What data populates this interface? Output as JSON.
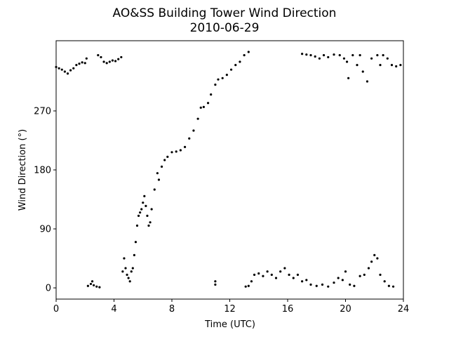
{
  "chart_data": {
    "type": "scatter",
    "title": "AO&SS Building Tower Wind Direction",
    "subtitle": "2010-06-29",
    "x_label": "Time (UTC)",
    "y_label": "Wind Direction (°)",
    "color": "#000000",
    "xlim": [
      0,
      24
    ],
    "ylim": [
      -17.1,
      377.1
    ],
    "xticks": [
      0,
      4,
      8,
      12,
      16,
      20,
      24
    ],
    "yticks": [
      0,
      90,
      180,
      270
    ],
    "grid": false,
    "x": [
      0,
      0.2,
      0.4,
      0.6,
      0.8,
      1.0,
      1.2,
      1.4,
      1.6,
      1.8,
      2.0,
      2.1,
      2.2,
      2.4,
      2.5,
      2.6,
      2.8,
      3.0,
      2.9,
      3.1,
      3.3,
      3.5,
      3.7,
      3.9,
      4.1,
      4.3,
      4.5,
      4.6,
      4.7,
      4.8,
      4.9,
      5.0,
      5.1,
      5.2,
      5.3,
      5.4,
      5.5,
      5.6,
      5.7,
      5.8,
      5.9,
      6.0,
      6.1,
      6.2,
      6.3,
      6.4,
      6.5,
      6.6,
      6.8,
      7.0,
      7.1,
      7.3,
      7.5,
      7.7,
      8.0,
      8.3,
      8.6,
      8.9,
      9.2,
      9.5,
      9.8,
      10.0,
      10.2,
      10.5,
      10.7,
      11.0,
      11.2,
      11.5,
      11.8,
      12.1,
      12.4,
      12.7,
      13.0,
      13.3,
      11.0,
      11.0,
      13.1,
      13.3,
      13.5,
      13.7,
      14.0,
      14.3,
      14.6,
      14.9,
      15.2,
      15.5,
      15.8,
      16.1,
      16.4,
      16.7,
      17.0,
      17.3,
      17.6,
      18.0,
      18.4,
      18.8,
      19.2,
      19.5,
      19.8,
      20.0,
      20.3,
      20.6,
      21.0,
      21.3,
      21.6,
      21.8,
      22.0,
      22.2,
      22.4,
      22.7,
      23.0,
      23.3,
      17.0,
      17.3,
      17.6,
      17.9,
      18.2,
      18.5,
      18.8,
      19.2,
      19.6,
      19.9,
      20.1,
      20.2,
      20.5,
      20.8,
      21.0,
      21.2,
      21.5,
      21.8,
      22.2,
      22.4,
      22.6,
      22.9,
      23.2,
      23.5,
      23.8
    ],
    "values": [
      337,
      335,
      333,
      330,
      327,
      332,
      335,
      340,
      342,
      344,
      343,
      350,
      3,
      6,
      10,
      4,
      2,
      1,
      355,
      352,
      345,
      343,
      345,
      347,
      346,
      349,
      352,
      25,
      45,
      30,
      20,
      15,
      10,
      25,
      30,
      50,
      70,
      95,
      110,
      115,
      120,
      130,
      140,
      125,
      110,
      95,
      100,
      120,
      150,
      175,
      165,
      185,
      195,
      200,
      207,
      208,
      210,
      215,
      228,
      240,
      258,
      275,
      276,
      282,
      295,
      310,
      318,
      320,
      325,
      333,
      340,
      345,
      355,
      360,
      5,
      10,
      2,
      3,
      10,
      20,
      22,
      18,
      25,
      20,
      15,
      25,
      30,
      20,
      15,
      20,
      10,
      12,
      5,
      3,
      5,
      2,
      8,
      15,
      12,
      25,
      5,
      3,
      18,
      20,
      30,
      40,
      50,
      45,
      20,
      10,
      3,
      2,
      357,
      356,
      355,
      353,
      350,
      355,
      352,
      356,
      355,
      350,
      345,
      320,
      355,
      340,
      355,
      330,
      315,
      350,
      355,
      340,
      355,
      350,
      340,
      338,
      340
    ]
  }
}
